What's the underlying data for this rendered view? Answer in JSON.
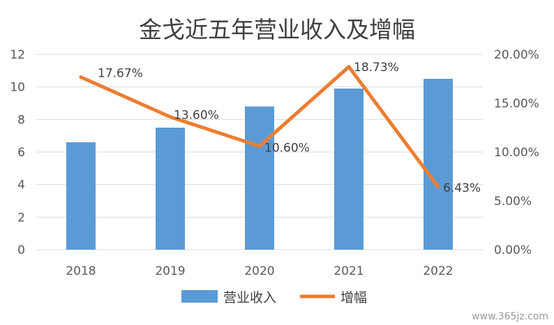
{
  "chart_data": {
    "type": "bar",
    "title": "金戈近五年营业收入及增幅",
    "categories": [
      "2018",
      "2019",
      "2020",
      "2021",
      "2022"
    ],
    "series": [
      {
        "name": "营业收入",
        "type": "bar",
        "axis": "left",
        "color": "#5b9bd5",
        "values": [
          6.6,
          7.5,
          8.8,
          9.9,
          10.5
        ]
      },
      {
        "name": "增幅",
        "type": "line",
        "axis": "right",
        "color": "#ed7d31",
        "values": [
          17.67,
          13.6,
          10.6,
          18.73,
          6.43
        ],
        "labels": [
          "17.67%",
          "13.60%",
          "10.60%",
          "18.73%",
          "6.43%"
        ]
      }
    ],
    "y_left": {
      "min": 0,
      "max": 12,
      "ticks": [
        "0",
        "2",
        "4",
        "6",
        "8",
        "10",
        "12"
      ]
    },
    "y_right": {
      "min": 0,
      "max": 20,
      "ticks": [
        "0.00%",
        "5.00%",
        "10.00%",
        "15.00%",
        "20.00%"
      ]
    },
    "grid": true,
    "legend": "bottom"
  },
  "watermark": "www.365jz.com"
}
